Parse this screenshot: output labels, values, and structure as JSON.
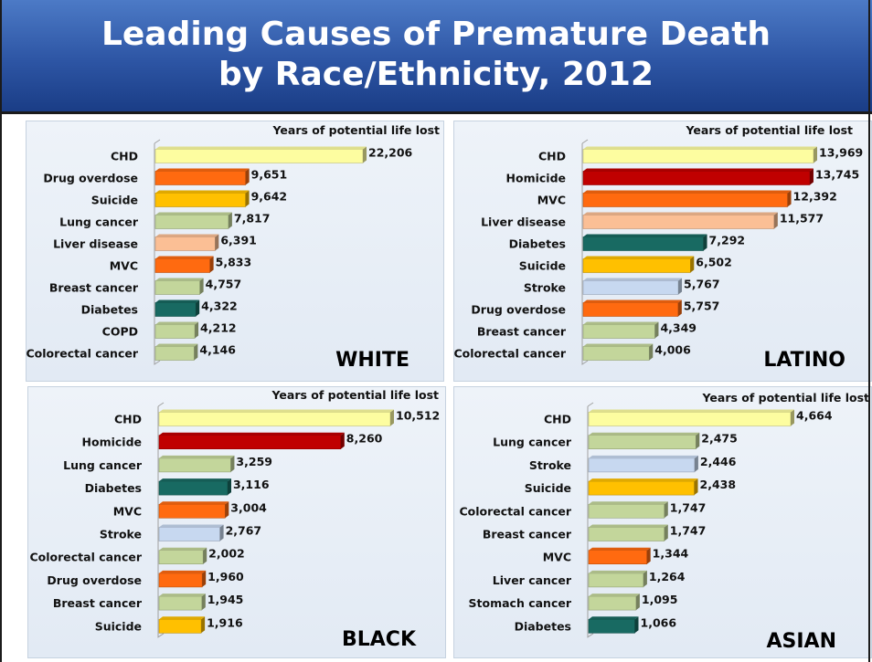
{
  "title_line1": "Leading Causes of Premature Death",
  "title_line2": "by Race/Ethnicity, 2012",
  "colors": {
    "CHD": "#fdfda0",
    "Drug overdose": "#ff6a10",
    "Suicide": "#ffc000",
    "Lung cancer": "#c3d69b",
    "Liver disease": "#fbbf95",
    "MVC": "#ff6a10",
    "Breast cancer": "#c3d69b",
    "Diabetes": "#186a62",
    "COPD": "#c3d69b",
    "Colorectal cancer": "#c3d69b",
    "Homicide": "#c00000",
    "Stroke": "#c7d8f0",
    "Stomach cancer": "#c3d69b"
  },
  "chart_data": [
    {
      "type": "bar",
      "orientation": "horizontal",
      "panel": "WHITE",
      "title": "Years of potential life lost",
      "categories": [
        "CHD",
        "Drug overdose",
        "Suicide",
        "Lung cancer",
        "Liver disease",
        "MVC",
        "Breast cancer",
        "Diabetes",
        "COPD",
        "Colorectal cancer"
      ],
      "values": [
        22206,
        9651,
        9642,
        7817,
        6391,
        5833,
        4757,
        4322,
        4212,
        4146
      ],
      "labels": [
        "22,206",
        "9,651",
        "9,642",
        "7,817",
        "6,391",
        "5,833",
        "4,757",
        "4,322",
        "4,212",
        "4,146"
      ]
    },
    {
      "type": "bar",
      "orientation": "horizontal",
      "panel": "LATINO",
      "title": "Years of potential life lost",
      "categories": [
        "CHD",
        "Homicide",
        "MVC",
        "Liver disease",
        "Diabetes",
        "Suicide",
        "Stroke",
        "Drug overdose",
        "Breast cancer",
        "Colorectal cancer"
      ],
      "values": [
        13969,
        13745,
        12392,
        11577,
        7292,
        6502,
        5767,
        5757,
        4349,
        4006
      ],
      "labels": [
        "13,969",
        "13,745",
        "12,392",
        "11,577",
        "7,292",
        "6,502",
        "5,767",
        "5,757",
        "4,349",
        "4,006"
      ]
    },
    {
      "type": "bar",
      "orientation": "horizontal",
      "panel": "BLACK",
      "title": "Years of potential life lost",
      "categories": [
        "CHD",
        "Homicide",
        "Lung cancer",
        "Diabetes",
        "MVC",
        "Stroke",
        "Colorectal cancer",
        "Drug overdose",
        "Breast cancer",
        "Suicide"
      ],
      "values": [
        10512,
        8260,
        3259,
        3116,
        3004,
        2767,
        2002,
        1960,
        1945,
        1916
      ],
      "labels": [
        "10,512",
        "8,260",
        "3,259",
        "3,116",
        "3,004",
        "2,767",
        "2,002",
        "1,960",
        "1,945",
        "1,916"
      ]
    },
    {
      "type": "bar",
      "orientation": "horizontal",
      "panel": "ASIAN",
      "title": "Years of potential life lost",
      "categories": [
        "CHD",
        "Lung cancer",
        "Stroke",
        "Suicide",
        "Colorectal cancer",
        "Breast cancer",
        "MVC",
        "Liver cancer",
        "Stomach cancer",
        "Diabetes"
      ],
      "values": [
        4664,
        2475,
        2446,
        2438,
        1747,
        1747,
        1344,
        1264,
        1095,
        1066
      ],
      "labels": [
        "4,664",
        "2,475",
        "2,446",
        "2,438",
        "1,747",
        "1,747",
        "1,344",
        "1,264",
        "1,095",
        "1,066"
      ]
    }
  ]
}
